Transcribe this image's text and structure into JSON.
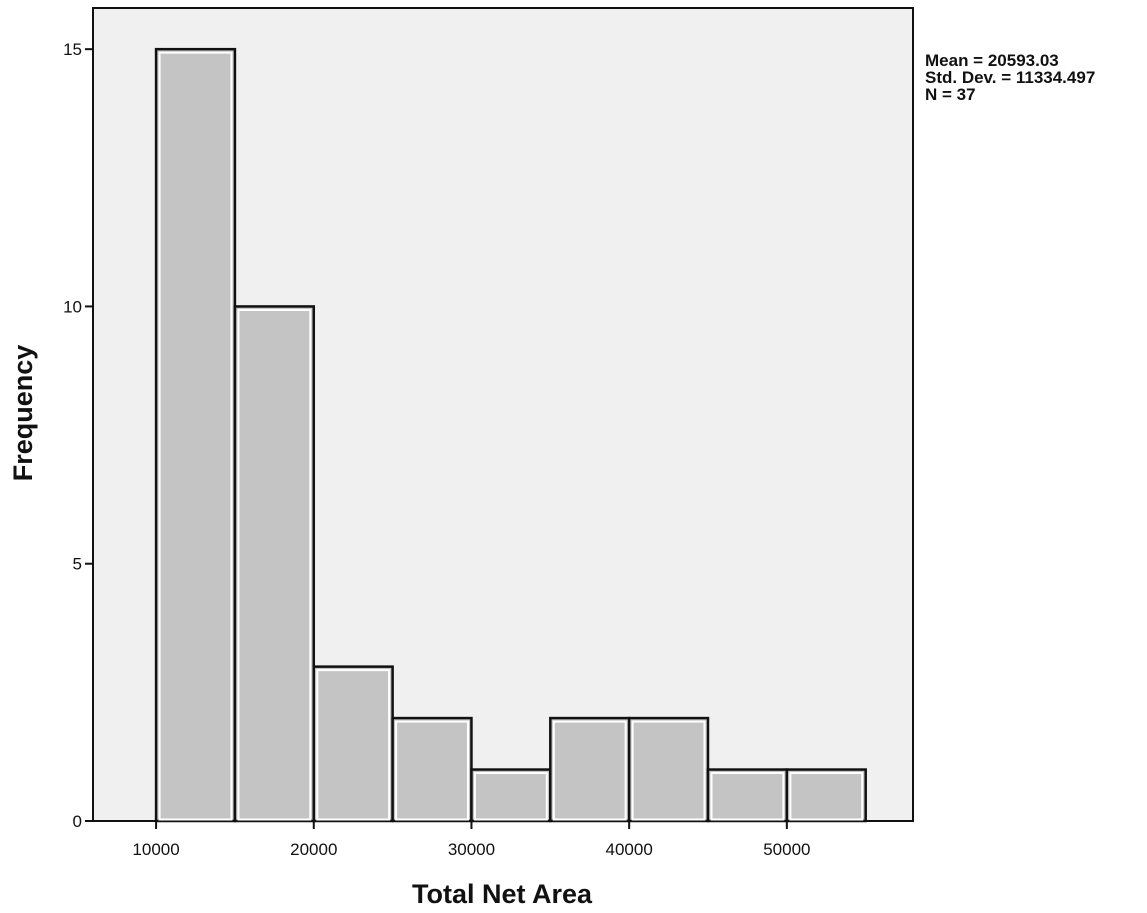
{
  "chart_data": {
    "type": "histogram",
    "xlabel": "Total Net Area",
    "ylabel": "Frequency",
    "bins": [
      {
        "start": 10000,
        "end": 15000,
        "count": 15
      },
      {
        "start": 15000,
        "end": 20000,
        "count": 10
      },
      {
        "start": 20000,
        "end": 25000,
        "count": 3
      },
      {
        "start": 25000,
        "end": 30000,
        "count": 2
      },
      {
        "start": 30000,
        "end": 35000,
        "count": 1
      },
      {
        "start": 35000,
        "end": 40000,
        "count": 2
      },
      {
        "start": 40000,
        "end": 45000,
        "count": 2
      },
      {
        "start": 45000,
        "end": 50000,
        "count": 1
      },
      {
        "start": 50000,
        "end": 55000,
        "count": 1
      }
    ],
    "x_ticks": [
      10000,
      20000,
      30000,
      40000,
      50000
    ],
    "y_ticks": [
      0,
      5,
      10,
      15
    ],
    "xlim": [
      6000,
      58000
    ],
    "ylim": [
      0,
      15.8
    ],
    "grid": false,
    "stats": {
      "mean": "Mean = 20593.03",
      "std_dev": "Std. Dev. = 11334.497",
      "n": "N = 37"
    },
    "colors": {
      "bar_fill": "#c4c4c4",
      "bar_stroke": "#111111",
      "bar_inner_edge": "#ffffff",
      "plot_background": "#f0f0f0"
    }
  }
}
